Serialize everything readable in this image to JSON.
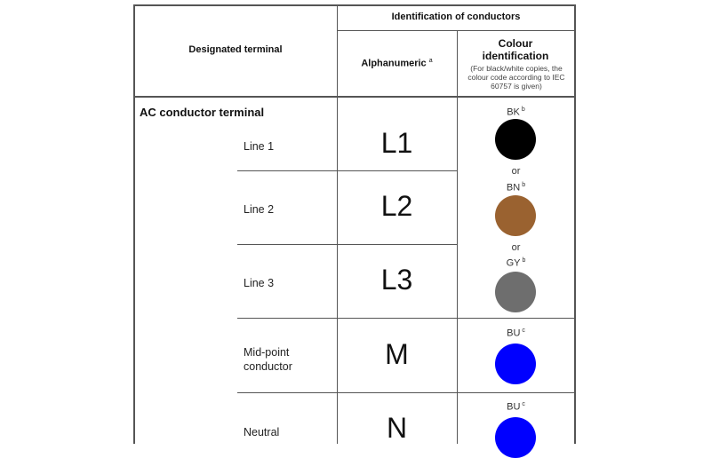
{
  "header": {
    "designated_terminal": "Designated terminal",
    "identification": "Identification of conductors",
    "alphanumeric": "Alphanumeric",
    "alphanumeric_note": "a",
    "colour_title": "Colour identification",
    "colour_note": "(For black/white copies, the colour code according to IEC 60757 is given)"
  },
  "section": "AC conductor terminal",
  "or_label": "or",
  "rows": [
    {
      "name": "Line 1",
      "alpha": "L1",
      "code": "BK",
      "note": "b",
      "color": "#000000"
    },
    {
      "name": "Line 2",
      "alpha": "L2",
      "code": "BN",
      "note": "b",
      "color": "#9a6230"
    },
    {
      "name": "Line 3",
      "alpha": "L3",
      "code": "GY",
      "note": "b",
      "color": "#6e6e6e"
    },
    {
      "name": "Mid-point conductor",
      "alpha": "M",
      "code": "BU",
      "note": "c",
      "color": "#0000ff"
    },
    {
      "name": "Neutral",
      "alpha": "N",
      "code": "BU",
      "note": "c",
      "color": "#0000ff"
    }
  ]
}
